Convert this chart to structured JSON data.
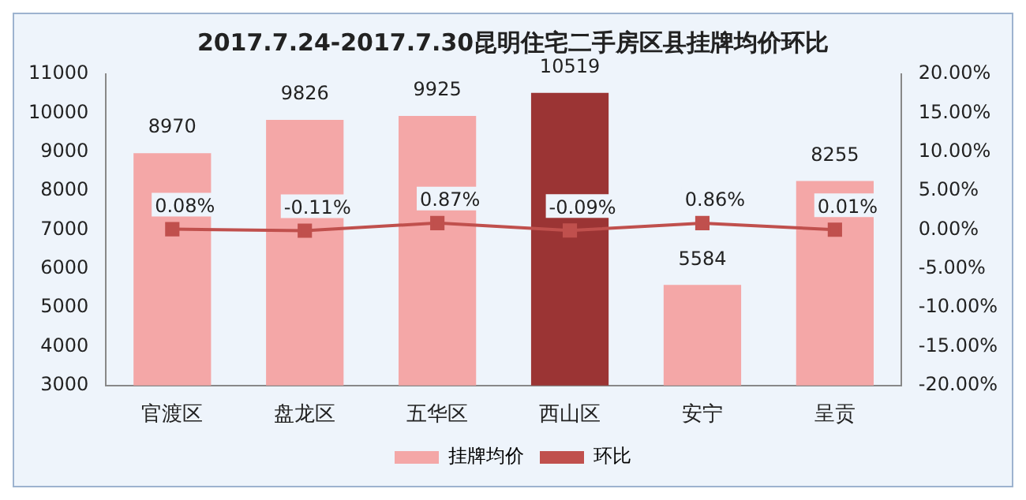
{
  "chart_data": {
    "type": "bar",
    "title": "2017.7.24-2017.7.30昆明住宅二手房区县挂牌均价环比",
    "categories": [
      "官渡区",
      "盘龙区",
      "五华区",
      "西山区",
      "安宁",
      "呈贡"
    ],
    "series": [
      {
        "name": "挂牌均价",
        "color": "#f4a7a7",
        "colors": [
          "#f4a7a7",
          "#f4a7a7",
          "#f4a7a7",
          "#9b3434",
          "#f4a7a7",
          "#f4a7a7"
        ],
        "values": [
          8970,
          9826,
          9925,
          10519,
          5584,
          8255
        ],
        "value_labels": [
          "8970",
          "9826",
          "9925",
          "10519",
          "5584",
          "8255"
        ]
      },
      {
        "name": "环比",
        "type": "line",
        "axis": "y2",
        "color": "#c0504d",
        "values": [
          0.08,
          -0.11,
          0.87,
          -0.09,
          0.86,
          0.01
        ],
        "value_labels": [
          "0.08%",
          "-0.11%",
          "0.87%",
          "-0.09%",
          "0.86%",
          "0.01%"
        ]
      }
    ],
    "ylim": [
      3000,
      11000
    ],
    "yticks": [
      3000,
      4000,
      5000,
      6000,
      7000,
      8000,
      9000,
      10000,
      11000
    ],
    "y2lim": [
      -20,
      20
    ],
    "y2ticks": [
      {
        "value": -20,
        "label": "-20.00%"
      },
      {
        "value": -15,
        "label": "-15.00%"
      },
      {
        "value": -10,
        "label": "-10.00%"
      },
      {
        "value": -5,
        "label": "-5.00%"
      },
      {
        "value": 0,
        "label": "0.00%"
      },
      {
        "value": 5,
        "label": "5.00%"
      },
      {
        "value": 10,
        "label": "10.00%"
      },
      {
        "value": 15,
        "label": "15.00%"
      },
      {
        "value": 20,
        "label": "20.00%"
      }
    ],
    "marker": "square",
    "legend": "bottom",
    "grid": false
  }
}
